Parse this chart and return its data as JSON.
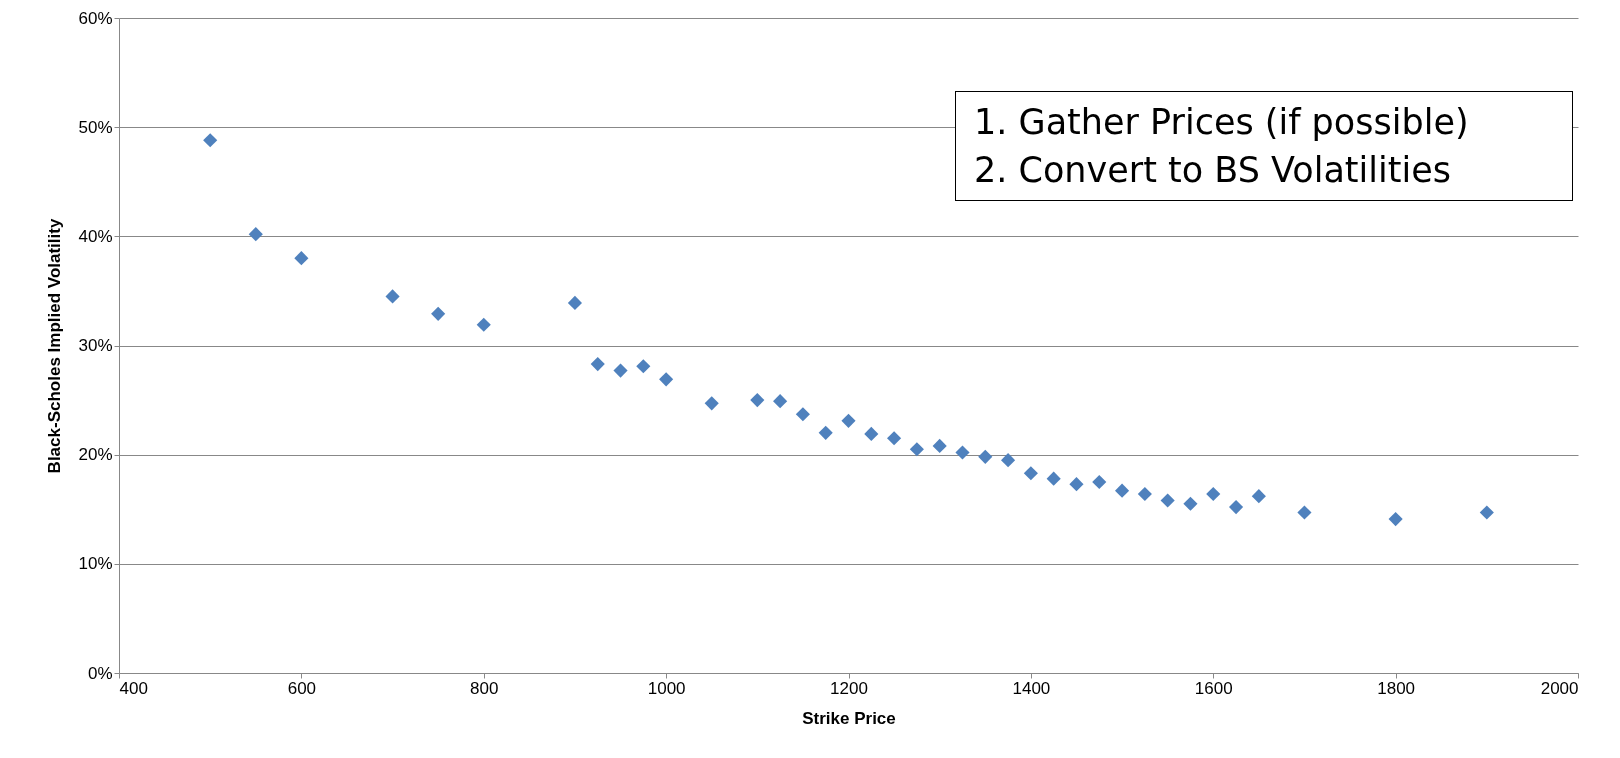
{
  "chart_data": {
    "type": "scatter",
    "xlabel": "Strike Price",
    "ylabel": "Black-Scholes  Implied Volatility",
    "x": [
      500,
      550,
      600,
      700,
      750,
      800,
      900,
      925,
      950,
      975,
      1000,
      1050,
      1100,
      1125,
      1150,
      1175,
      1200,
      1225,
      1250,
      1275,
      1300,
      1325,
      1350,
      1375,
      1400,
      1425,
      1450,
      1475,
      1500,
      1525,
      1550,
      1575,
      1600,
      1625,
      1650,
      1700,
      1800,
      1900
    ],
    "series": [
      {
        "color": "#4f81bd",
        "values": [
          48.8,
          40.2,
          38.0,
          34.5,
          32.9,
          31.9,
          33.9,
          28.3,
          27.7,
          28.1,
          26.9,
          24.7,
          25.0,
          24.9,
          23.7,
          22.0,
          23.1,
          21.9,
          21.5,
          20.5,
          20.8,
          20.2,
          19.8,
          19.5,
          18.3,
          17.8,
          17.3,
          17.5,
          16.7,
          16.4,
          15.8,
          15.5,
          16.4,
          15.2,
          16.2,
          14.7,
          14.1,
          14.7
        ]
      }
    ],
    "xlim": [
      400,
      2000
    ],
    "xticks": [
      400,
      600,
      800,
      1000,
      1200,
      1400,
      1600,
      1800,
      2000
    ],
    "ylim": [
      0,
      60
    ],
    "yticks": [
      {
        "value": 0,
        "label": "0%"
      },
      {
        "value": 10,
        "label": "10%"
      },
      {
        "value": 20,
        "label": "20%"
      },
      {
        "value": 30,
        "label": "30%"
      },
      {
        "value": 40,
        "label": "40%"
      },
      {
        "value": 50,
        "label": "50%"
      },
      {
        "value": 60,
        "label": "60%"
      }
    ],
    "grid": "y",
    "marker": "diamond",
    "annotations": [
      "1.   Gather Prices (if possible)",
      "2.   Convert to BS Volatilities"
    ]
  }
}
